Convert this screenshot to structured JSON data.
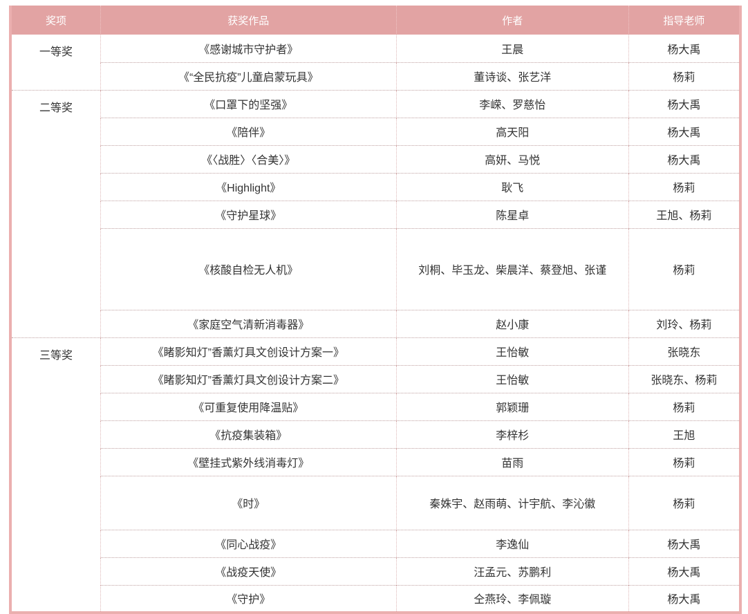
{
  "table": {
    "columns": [
      "奖项",
      "获奖作品",
      "作者",
      "指导老师"
    ],
    "colors": {
      "header_bg": "#e2a3a3",
      "header_text": "#ffffff",
      "outer_border": "#ebafaf",
      "row_divider": "#bfa0a0",
      "col_divider": "#ddb6b6",
      "body_text": "#333333"
    },
    "groups": [
      {
        "award": "一等奖",
        "rows": [
          {
            "work": "《感谢城市守护者》",
            "authors": "王晨",
            "advisors": "杨大禹"
          },
          {
            "work": "《“全民抗疫”儿童启蒙玩具》",
            "authors": "董诗谈、张艺洋",
            "advisors": "杨莉"
          }
        ]
      },
      {
        "award": "二等奖",
        "rows": [
          {
            "work": "《口罩下的坚强》",
            "authors": "李嵘、罗慈怡",
            "advisors": "杨大禹"
          },
          {
            "work": "《陪伴》",
            "authors": "高天阳",
            "advisors": "杨大禹"
          },
          {
            "work": "《〈战胜〉〈合美〉》",
            "authors": "高妍、马悦",
            "advisors": "杨大禹"
          },
          {
            "work": "《Highlight》",
            "authors": "耿飞",
            "advisors": "杨莉"
          },
          {
            "work": "《守护星球》",
            "authors": "陈星卓",
            "advisors": "王旭、杨莉"
          },
          {
            "work": "《核酸自检无人机》",
            "authors": "刘桐、毕玉龙、柴晨洋、蔡登旭、张谨",
            "advisors": "杨莉",
            "height": 118
          },
          {
            "work": "《家庭空气清新消毒器》",
            "authors": "赵小康",
            "advisors": "刘玲、杨莉"
          }
        ]
      },
      {
        "award": "三等奖",
        "rows": [
          {
            "work": "《睹影知灯”香薰灯具文创设计方案一》",
            "authors": "王怡敏",
            "advisors": "张晓东"
          },
          {
            "work": "《睹影知灯”香薰灯具文创设计方案二》",
            "authors": "王怡敏",
            "advisors": "张晓东、杨莉"
          },
          {
            "work": "《可重复使用降温贴》",
            "authors": "郭颖珊",
            "advisors": "杨莉"
          },
          {
            "work": "《抗疫集装箱》",
            "authors": "李梓杉",
            "advisors": "王旭"
          },
          {
            "work": "《壁挂式紫外线消毒灯》",
            "authors": "苗雨",
            "advisors": "杨莉"
          },
          {
            "work": "《时》",
            "authors": "秦姝宇、赵雨萌、计宇航、李沁徽",
            "advisors": "杨莉",
            "height": 78
          },
          {
            "work": "《同心战疫》",
            "authors": "李逸仙",
            "advisors": "杨大禹"
          },
          {
            "work": "《战疫天使》",
            "authors": "汪孟元、苏鹏利",
            "advisors": "杨大禹"
          },
          {
            "work": "《守护》",
            "authors": "仝燕玲、李佩璇",
            "advisors": "杨大禹"
          }
        ]
      }
    ]
  }
}
